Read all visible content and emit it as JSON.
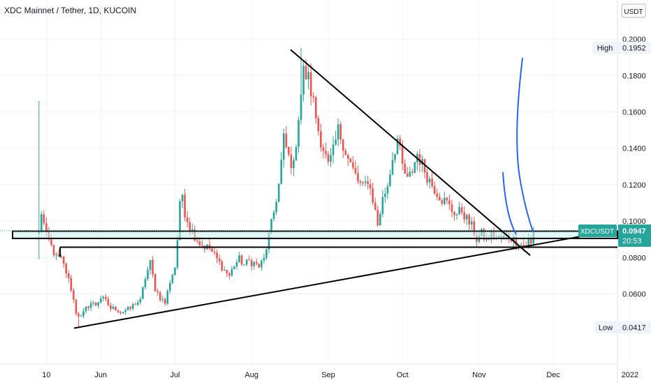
{
  "header": {
    "title": "XDC Mainnet / Tether, 1D, KUCOIN"
  },
  "colors": {
    "up": "#26a69a",
    "down": "#ef5350",
    "grid": "#f0f3fa",
    "text": "#131722",
    "axis_text": "#131722",
    "drawing": "#000000",
    "blue_curve": "#2962ff",
    "zone_fill": "#c9f0ef",
    "price_label": "#26a69a"
  },
  "chart_data": {
    "type": "candlestick",
    "title": "XDC Mainnet / Tether, 1D, KUCOIN",
    "currency_label": "USDT",
    "symbol": "XDCUSDT",
    "last_price": "0.0947",
    "countdown": "20:53",
    "high_label": "High",
    "high_value": "0.1952",
    "low_label": "Low",
    "low_value": "0.0417",
    "x_ticks": [
      {
        "label": "10",
        "day": 10
      },
      {
        "label": "Jun",
        "day": 32
      },
      {
        "label": "Jul",
        "day": 62
      },
      {
        "label": "Aug",
        "day": 93
      },
      {
        "label": "Sep",
        "day": 124
      },
      {
        "label": "Oct",
        "day": 154
      },
      {
        "label": "Nov",
        "day": 185
      },
      {
        "label": "Dec",
        "day": 215
      },
      {
        "label": "2022",
        "day": 246
      }
    ],
    "y_ticks": [
      0.2,
      0.18,
      0.16,
      0.14,
      0.12,
      0.1,
      0.08,
      0.06
    ],
    "y_tick_labels": [
      "0.2000",
      "0.1800",
      "0.1600",
      "0.1400",
      "0.1200",
      "0.1000",
      "0.0800",
      "0.0600"
    ],
    "ylim": [
      0.0215,
      0.2215
    ],
    "xlim": [
      1,
      270
    ],
    "grid": true,
    "anchors": [
      {
        "d": 7,
        "p": 0.094
      },
      {
        "d": 8,
        "p": 0.105
      },
      {
        "d": 9,
        "p": 0.098
      },
      {
        "d": 10,
        "p": 0.092
      },
      {
        "d": 12,
        "p": 0.086
      },
      {
        "d": 14,
        "p": 0.08
      },
      {
        "d": 16,
        "p": 0.079
      },
      {
        "d": 18,
        "p": 0.072
      },
      {
        "d": 20,
        "p": 0.063
      },
      {
        "d": 22,
        "p": 0.05
      },
      {
        "d": 24,
        "p": 0.047
      },
      {
        "d": 26,
        "p": 0.052
      },
      {
        "d": 28,
        "p": 0.055
      },
      {
        "d": 30,
        "p": 0.054
      },
      {
        "d": 32,
        "p": 0.058
      },
      {
        "d": 34,
        "p": 0.056
      },
      {
        "d": 36,
        "p": 0.052
      },
      {
        "d": 38,
        "p": 0.052
      },
      {
        "d": 40,
        "p": 0.05
      },
      {
        "d": 42,
        "p": 0.051
      },
      {
        "d": 44,
        "p": 0.052
      },
      {
        "d": 46,
        "p": 0.055
      },
      {
        "d": 48,
        "p": 0.056
      },
      {
        "d": 50,
        "p": 0.069
      },
      {
        "d": 52,
        "p": 0.077
      },
      {
        "d": 54,
        "p": 0.063
      },
      {
        "d": 56,
        "p": 0.058
      },
      {
        "d": 58,
        "p": 0.055
      },
      {
        "d": 60,
        "p": 0.067
      },
      {
        "d": 62,
        "p": 0.075
      },
      {
        "d": 63,
        "p": 0.09
      },
      {
        "d": 64,
        "p": 0.108
      },
      {
        "d": 65,
        "p": 0.115
      },
      {
        "d": 66,
        "p": 0.105
      },
      {
        "d": 68,
        "p": 0.097
      },
      {
        "d": 70,
        "p": 0.092
      },
      {
        "d": 72,
        "p": 0.088
      },
      {
        "d": 74,
        "p": 0.086
      },
      {
        "d": 76,
        "p": 0.085
      },
      {
        "d": 78,
        "p": 0.081
      },
      {
        "d": 80,
        "p": 0.077
      },
      {
        "d": 82,
        "p": 0.073
      },
      {
        "d": 84,
        "p": 0.07
      },
      {
        "d": 86,
        "p": 0.076
      },
      {
        "d": 88,
        "p": 0.079
      },
      {
        "d": 90,
        "p": 0.076
      },
      {
        "d": 92,
        "p": 0.078
      },
      {
        "d": 94,
        "p": 0.077
      },
      {
        "d": 96,
        "p": 0.075
      },
      {
        "d": 98,
        "p": 0.079
      },
      {
        "d": 100,
        "p": 0.092
      },
      {
        "d": 102,
        "p": 0.105
      },
      {
        "d": 104,
        "p": 0.12
      },
      {
        "d": 106,
        "p": 0.145
      },
      {
        "d": 108,
        "p": 0.135
      },
      {
        "d": 110,
        "p": 0.13
      },
      {
        "d": 112,
        "p": 0.158
      },
      {
        "d": 114,
        "p": 0.182
      },
      {
        "d": 116,
        "p": 0.178
      },
      {
        "d": 118,
        "p": 0.165
      },
      {
        "d": 120,
        "p": 0.15
      },
      {
        "d": 122,
        "p": 0.14
      },
      {
        "d": 124,
        "p": 0.13
      },
      {
        "d": 126,
        "p": 0.138
      },
      {
        "d": 128,
        "p": 0.15
      },
      {
        "d": 130,
        "p": 0.143
      },
      {
        "d": 132,
        "p": 0.134
      },
      {
        "d": 134,
        "p": 0.128
      },
      {
        "d": 136,
        "p": 0.122
      },
      {
        "d": 138,
        "p": 0.118
      },
      {
        "d": 140,
        "p": 0.123
      },
      {
        "d": 142,
        "p": 0.112
      },
      {
        "d": 144,
        "p": 0.098
      },
      {
        "d": 146,
        "p": 0.112
      },
      {
        "d": 148,
        "p": 0.12
      },
      {
        "d": 150,
        "p": 0.135
      },
      {
        "d": 152,
        "p": 0.145
      },
      {
        "d": 154,
        "p": 0.13
      },
      {
        "d": 156,
        "p": 0.122
      },
      {
        "d": 158,
        "p": 0.128
      },
      {
        "d": 160,
        "p": 0.137
      },
      {
        "d": 162,
        "p": 0.131
      },
      {
        "d": 164,
        "p": 0.125
      },
      {
        "d": 166,
        "p": 0.12
      },
      {
        "d": 168,
        "p": 0.116
      },
      {
        "d": 170,
        "p": 0.112
      },
      {
        "d": 172,
        "p": 0.11
      },
      {
        "d": 174,
        "p": 0.106
      },
      {
        "d": 176,
        "p": 0.104
      },
      {
        "d": 178,
        "p": 0.106
      },
      {
        "d": 180,
        "p": 0.101
      },
      {
        "d": 182,
        "p": 0.097
      },
      {
        "d": 184,
        "p": 0.09
      },
      {
        "d": 186,
        "p": 0.093
      },
      {
        "d": 188,
        "p": 0.089
      },
      {
        "d": 190,
        "p": 0.093
      },
      {
        "d": 192,
        "p": 0.091
      },
      {
        "d": 194,
        "p": 0.09
      },
      {
        "d": 196,
        "p": 0.092
      },
      {
        "d": 198,
        "p": 0.091
      },
      {
        "d": 200,
        "p": 0.089
      },
      {
        "d": 202,
        "p": 0.087
      },
      {
        "d": 204,
        "p": 0.086
      },
      {
        "d": 205,
        "p": 0.089
      },
      {
        "d": 206,
        "p": 0.087
      },
      {
        "d": 207,
        "p": 0.094
      }
    ],
    "drawings": {
      "zone": {
        "d1": 1,
        "d2": 270,
        "p1": 0.0945,
        "p2": 0.0905
      },
      "support_line": {
        "d1": 11,
        "d2": 270,
        "p": 0.0857
      },
      "descending_trendline": {
        "d1": 108,
        "p1": 0.1942,
        "d2": 226,
        "p2": 0.0812
      },
      "ascending_trendline": {
        "d1": 22,
        "p1": 0.0412,
        "d2": 262,
        "p2": 0.0915
      }
    }
  }
}
